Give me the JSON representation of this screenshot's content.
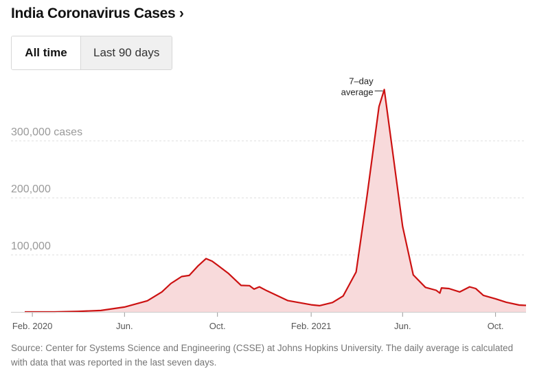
{
  "header": {
    "title": "India Coronavirus Cases",
    "chevron": "›"
  },
  "tabs": [
    {
      "label": "All time",
      "active": true
    },
    {
      "label": "Last 90 days",
      "active": false
    }
  ],
  "colors": {
    "line": "#cc1111",
    "fill": "#f8dadb",
    "grid": "#dddddd",
    "axis_text": "#999999",
    "x_text": "#555555"
  },
  "footer": {
    "source": "Source: Center for Systems Science and Engineering (CSSE) at Johns Hopkins University. The daily average is calculated with data that was reported in the last seven days."
  },
  "chart_data": {
    "type": "area",
    "title": "India Coronavirus Cases",
    "series_name": "7-day average",
    "annotation": {
      "line1": "7–day",
      "line2": "average"
    },
    "xlim": [
      "2020-01-22",
      "2021-11-10"
    ],
    "ylim": [
      0,
      400000
    ],
    "y_ticks": [
      {
        "value": 100000,
        "label": "100,000"
      },
      {
        "value": 200000,
        "label": "200,000"
      },
      {
        "value": 300000,
        "label": "300,000 cases"
      }
    ],
    "x_ticks": [
      {
        "date": "2020-02-01",
        "label": "Feb. 2020"
      },
      {
        "date": "2020-06-01",
        "label": "Jun."
      },
      {
        "date": "2020-10-01",
        "label": "Oct."
      },
      {
        "date": "2021-02-01",
        "label": "Feb. 2021"
      },
      {
        "date": "2021-06-01",
        "label": "Jun."
      },
      {
        "date": "2021-10-01",
        "label": "Oct."
      }
    ],
    "points": [
      {
        "date": "2020-01-22",
        "value": 0
      },
      {
        "date": "2020-03-01",
        "value": 0
      },
      {
        "date": "2020-04-01",
        "value": 1000
      },
      {
        "date": "2020-05-01",
        "value": 2500
      },
      {
        "date": "2020-06-01",
        "value": 8500
      },
      {
        "date": "2020-07-01",
        "value": 19500
      },
      {
        "date": "2020-07-20",
        "value": 35000
      },
      {
        "date": "2020-08-01",
        "value": 50000
      },
      {
        "date": "2020-08-15",
        "value": 62000
      },
      {
        "date": "2020-08-25",
        "value": 64000
      },
      {
        "date": "2020-09-05",
        "value": 80000
      },
      {
        "date": "2020-09-16",
        "value": 93500
      },
      {
        "date": "2020-09-24",
        "value": 89000
      },
      {
        "date": "2020-10-01",
        "value": 82000
      },
      {
        "date": "2020-10-15",
        "value": 68000
      },
      {
        "date": "2020-11-01",
        "value": 46500
      },
      {
        "date": "2020-11-12",
        "value": 46000
      },
      {
        "date": "2020-11-18",
        "value": 40000
      },
      {
        "date": "2020-11-25",
        "value": 44000
      },
      {
        "date": "2020-12-05",
        "value": 37000
      },
      {
        "date": "2021-01-01",
        "value": 20000
      },
      {
        "date": "2021-02-01",
        "value": 12500
      },
      {
        "date": "2021-02-12",
        "value": 11000
      },
      {
        "date": "2021-03-01",
        "value": 16500
      },
      {
        "date": "2021-03-15",
        "value": 28000
      },
      {
        "date": "2021-04-01",
        "value": 70000
      },
      {
        "date": "2021-04-15",
        "value": 200000
      },
      {
        "date": "2021-05-01",
        "value": 360000
      },
      {
        "date": "2021-05-08",
        "value": 390000
      },
      {
        "date": "2021-05-20",
        "value": 270000
      },
      {
        "date": "2021-06-01",
        "value": 150000
      },
      {
        "date": "2021-06-15",
        "value": 65000
      },
      {
        "date": "2021-07-01",
        "value": 43000
      },
      {
        "date": "2021-07-15",
        "value": 38000
      },
      {
        "date": "2021-07-20",
        "value": 33000
      },
      {
        "date": "2021-07-22",
        "value": 42000
      },
      {
        "date": "2021-08-01",
        "value": 41000
      },
      {
        "date": "2021-08-15",
        "value": 35000
      },
      {
        "date": "2021-08-28",
        "value": 44000
      },
      {
        "date": "2021-09-05",
        "value": 41000
      },
      {
        "date": "2021-09-15",
        "value": 29000
      },
      {
        "date": "2021-10-01",
        "value": 23000
      },
      {
        "date": "2021-10-15",
        "value": 17000
      },
      {
        "date": "2021-11-01",
        "value": 12000
      },
      {
        "date": "2021-11-10",
        "value": 11500
      }
    ]
  }
}
